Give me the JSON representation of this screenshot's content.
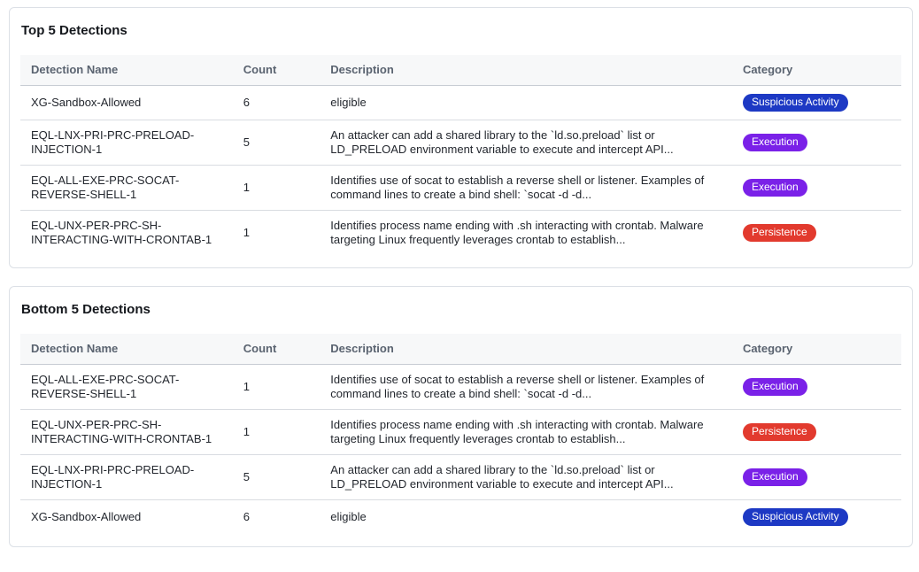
{
  "colors": {
    "card_border": "#dce0e6",
    "header_bg": "#f7f8f9",
    "header_text": "#5a6370",
    "body_text": "#23272e",
    "row_border": "#d9dce1",
    "badge_text": "#ffffff"
  },
  "category_colors": {
    "Suspicious Activity": "#1d39c4",
    "Execution": "#7a21e8",
    "Persistence": "#e23a2e"
  },
  "tables": [
    {
      "title": "Top 5 Detections",
      "columns": [
        "Detection Name",
        "Count",
        "Description",
        "Category"
      ],
      "rows": [
        {
          "name": "XG-Sandbox-Allowed",
          "count": "6",
          "description": "eligible",
          "category": "Suspicious Activity"
        },
        {
          "name": "EQL-LNX-PRI-PRC-PRELOAD-INJECTION-1",
          "count": "5",
          "description": "An attacker can add a shared library to the `ld.so.preload` list or LD_PRELOAD environment variable to execute and intercept API...",
          "category": "Execution"
        },
        {
          "name": "EQL-ALL-EXE-PRC-SOCAT-REVERSE-SHELL-1",
          "count": "1",
          "description": "Identifies use of socat to establish a reverse shell or listener. Examples of command lines to create a bind shell: `socat -d -d...",
          "category": "Execution"
        },
        {
          "name": "EQL-UNX-PER-PRC-SH-INTERACTING-WITH-CRONTAB-1",
          "count": "1",
          "description": "Identifies process name ending with .sh interacting with crontab. Malware targeting Linux frequently leverages crontab to establish...",
          "category": "Persistence"
        }
      ]
    },
    {
      "title": "Bottom 5 Detections",
      "columns": [
        "Detection Name",
        "Count",
        "Description",
        "Category"
      ],
      "rows": [
        {
          "name": "EQL-ALL-EXE-PRC-SOCAT-REVERSE-SHELL-1",
          "count": "1",
          "description": "Identifies use of socat to establish a reverse shell or listener. Examples of command lines to create a bind shell: `socat -d -d...",
          "category": "Execution"
        },
        {
          "name": "EQL-UNX-PER-PRC-SH-INTERACTING-WITH-CRONTAB-1",
          "count": "1",
          "description": "Identifies process name ending with .sh interacting with crontab. Malware targeting Linux frequently leverages crontab to establish...",
          "category": "Persistence"
        },
        {
          "name": "EQL-LNX-PRI-PRC-PRELOAD-INJECTION-1",
          "count": "5",
          "description": "An attacker can add a shared library to the `ld.so.preload` list or LD_PRELOAD environment variable to execute and intercept API...",
          "category": "Execution"
        },
        {
          "name": "XG-Sandbox-Allowed",
          "count": "6",
          "description": "eligible",
          "category": "Suspicious Activity"
        }
      ]
    }
  ]
}
